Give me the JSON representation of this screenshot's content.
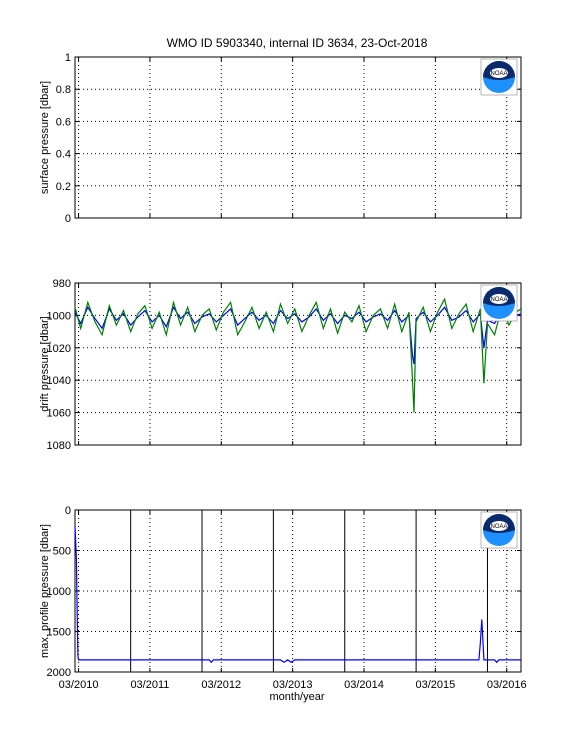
{
  "figure": {
    "title": "WMO ID 5903340, internal ID 3634, 23-Oct-2018",
    "xlabel": "month/year",
    "logo_text": "NOAA",
    "colors": {
      "axes": "#000000",
      "grid": "#000000",
      "series_blue": "#0000ff",
      "series_green": "#008000"
    }
  },
  "chart_data": [
    {
      "type": "line",
      "ylabel": "surface pressure [dbar]",
      "ylim": [
        0,
        1
      ],
      "y_reversed": false,
      "yticks": [
        0,
        0.2,
        0.4,
        0.6,
        0.8,
        1
      ],
      "ytick_labels": [
        "0",
        "0.2",
        "0.4",
        "0.6",
        "0.8",
        "1"
      ],
      "xlim": [
        2010.12,
        2016.37
      ],
      "xticks": [
        2010.17,
        2011.17,
        2012.17,
        2013.17,
        2014.17,
        2015.17,
        2016.17
      ],
      "xtick_labels": [],
      "grid": true,
      "series": []
    },
    {
      "type": "line",
      "ylabel": "drift pressure [dbar]",
      "ylim": [
        980,
        1080
      ],
      "y_reversed": true,
      "yticks": [
        980,
        1000,
        1020,
        1040,
        1060,
        1080
      ],
      "ytick_labels": [
        "980",
        "1000",
        "1020",
        "1040",
        "1060",
        "1080"
      ],
      "xlim": [
        2010.12,
        2016.37
      ],
      "xticks": [
        2010.17,
        2011.17,
        2012.17,
        2013.17,
        2014.17,
        2015.17,
        2016.17
      ],
      "xtick_labels": [],
      "grid": true,
      "series": [
        {
          "color": "#0000ff",
          "x": [
            2010.12,
            2010.2,
            2010.3,
            2010.4,
            2010.5,
            2010.6,
            2010.7,
            2010.8,
            2010.9,
            2011.0,
            2011.1,
            2011.2,
            2011.3,
            2011.4,
            2011.5,
            2011.6,
            2011.7,
            2011.8,
            2011.9,
            2012.0,
            2012.1,
            2012.2,
            2012.3,
            2012.4,
            2012.5,
            2012.6,
            2012.7,
            2012.8,
            2012.9,
            2013.0,
            2013.1,
            2013.2,
            2013.3,
            2013.4,
            2013.5,
            2013.6,
            2013.7,
            2013.8,
            2013.9,
            2014.0,
            2014.1,
            2014.2,
            2014.3,
            2014.4,
            2014.5,
            2014.6,
            2014.7,
            2014.8,
            2014.85,
            2014.87,
            2014.9,
            2015.0,
            2015.1,
            2015.2,
            2015.3,
            2015.4,
            2015.5,
            2015.6,
            2015.7,
            2015.8,
            2015.85,
            2015.9,
            2016.0,
            2016.1,
            2016.2,
            2016.3,
            2016.37
          ],
          "y": [
            998,
            1005,
            995,
            1002,
            1008,
            996,
            1003,
            999,
            1006,
            1001,
            997,
            1004,
            1000,
            1007,
            995,
            1002,
            998,
            1005,
            1001,
            999,
            1004,
            1000,
            996,
            1006,
            1002,
            998,
            1003,
            1000,
            1005,
            997,
            1002,
            999,
            1004,
            1001,
            996,
            1003,
            999,
            1005,
            1000,
            1002,
            998,
            1004,
            1001,
            999,
            1003,
            997,
            1004,
            1000,
            1025,
            1030,
            1002,
            998,
            1004,
            1000,
            995,
            1003,
            1001,
            997,
            1004,
            999,
            1020,
            1003,
            1005,
            998,
            1002,
            1000,
            999
          ]
        },
        {
          "color": "#008000",
          "x": [
            2010.12,
            2010.2,
            2010.3,
            2010.4,
            2010.5,
            2010.6,
            2010.7,
            2010.8,
            2010.9,
            2011.0,
            2011.1,
            2011.2,
            2011.3,
            2011.4,
            2011.5,
            2011.6,
            2011.7,
            2011.8,
            2011.9,
            2012.0,
            2012.1,
            2012.2,
            2012.3,
            2012.4,
            2012.5,
            2012.6,
            2012.7,
            2012.8,
            2012.9,
            2013.0,
            2013.1,
            2013.2,
            2013.3,
            2013.4,
            2013.5,
            2013.6,
            2013.7,
            2013.8,
            2013.9,
            2014.0,
            2014.1,
            2014.2,
            2014.3,
            2014.4,
            2014.5,
            2014.6,
            2014.7,
            2014.8,
            2014.85,
            2014.87,
            2014.9,
            2015.0,
            2015.1,
            2015.2,
            2015.3,
            2015.4,
            2015.5,
            2015.6,
            2015.7,
            2015.8,
            2015.85,
            2015.9,
            2016.0,
            2016.1,
            2016.2,
            2016.3,
            2016.37
          ],
          "y": [
            995,
            1008,
            992,
            1004,
            1012,
            994,
            1006,
            997,
            1010,
            999,
            994,
            1008,
            998,
            1012,
            992,
            1006,
            995,
            1010,
            1000,
            996,
            1009,
            998,
            992,
            1012,
            1004,
            995,
            1008,
            998,
            1010,
            993,
            1005,
            996,
            1010,
            1000,
            992,
            1008,
            996,
            1011,
            998,
            1004,
            994,
            1010,
            1000,
            996,
            1008,
            993,
            1010,
            998,
            1040,
            1060,
            1004,
            995,
            1010,
            998,
            990,
            1008,
            999,
            993,
            1010,
            996,
            1042,
            1005,
            1012,
            995,
            1006,
            998,
            996
          ]
        }
      ]
    },
    {
      "type": "line",
      "ylabel": "max. profile pressure [dbar]",
      "ylim": [
        0,
        2000
      ],
      "y_reversed": true,
      "yticks": [
        0,
        500,
        1000,
        1500,
        2000
      ],
      "ytick_labels": [
        "0",
        "500",
        "1000",
        "1500",
        "2000"
      ],
      "xlim": [
        2010.12,
        2016.37
      ],
      "xticks": [
        2010.17,
        2011.17,
        2012.17,
        2013.17,
        2014.17,
        2015.17,
        2016.17
      ],
      "xtick_labels": [
        "03/2010",
        "03/2011",
        "03/2012",
        "03/2013",
        "03/2014",
        "03/2015",
        "03/2016"
      ],
      "grid": true,
      "vlines": [
        2010.9,
        2011.9,
        2012.9,
        2013.9,
        2014.9,
        2015.9
      ],
      "series": [
        {
          "color": "#0000ff",
          "x": [
            2010.12,
            2010.14,
            2010.15,
            2010.16,
            2010.17,
            2010.3,
            2010.5,
            2010.7,
            2010.9,
            2011.1,
            2011.3,
            2011.5,
            2011.7,
            2011.9,
            2012.0,
            2012.03,
            2012.06,
            2012.1,
            2012.3,
            2012.5,
            2012.7,
            2012.9,
            2013.0,
            2013.05,
            2013.1,
            2013.15,
            2013.2,
            2013.4,
            2013.6,
            2013.8,
            2014.0,
            2014.2,
            2014.4,
            2014.6,
            2014.8,
            2015.0,
            2015.2,
            2015.4,
            2015.6,
            2015.78,
            2015.8,
            2015.82,
            2015.85,
            2015.9,
            2016.0,
            2016.03,
            2016.06,
            2016.1,
            2016.2,
            2016.37
          ],
          "y": [
            200,
            600,
            1200,
            1800,
            1850,
            1850,
            1850,
            1850,
            1850,
            1850,
            1850,
            1850,
            1850,
            1850,
            1850,
            1880,
            1850,
            1850,
            1850,
            1850,
            1850,
            1850,
            1850,
            1880,
            1850,
            1880,
            1850,
            1850,
            1850,
            1850,
            1850,
            1850,
            1850,
            1850,
            1850,
            1850,
            1850,
            1850,
            1850,
            1850,
            1650,
            1350,
            1850,
            1850,
            1850,
            1880,
            1850,
            1850,
            1850,
            1850
          ]
        }
      ]
    }
  ]
}
